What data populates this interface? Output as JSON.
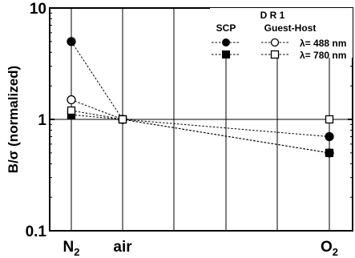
{
  "chart_data": {
    "type": "line",
    "ylabel": "B/σ (normalized)",
    "yscale": "log",
    "ylim": [
      0.1,
      10
    ],
    "y_ticks": [
      {
        "value": 0.1,
        "label": "0.1"
      },
      {
        "value": 1,
        "label": "1"
      },
      {
        "value": 10,
        "label": "10"
      }
    ],
    "categories": [
      "N2",
      "air",
      "O2"
    ],
    "category_labels": [
      {
        "base": "N",
        "sub": "2"
      },
      {
        "base": "air",
        "sub": ""
      },
      {
        "base": "O",
        "sub": "2"
      }
    ],
    "reference_line": 1,
    "legend": {
      "title": "D R 1",
      "columns": [
        "SCP",
        "Guest-Host"
      ],
      "rows": [
        "λ= 488 nm",
        "λ= 780 nm"
      ],
      "placement": "top-right"
    },
    "series": [
      {
        "method": "SCP",
        "wavelength": "λ= 488 nm",
        "marker": "filled-circle",
        "values": [
          5.0,
          1.0,
          0.7
        ]
      },
      {
        "method": "Guest-Host",
        "wavelength": "λ= 488 nm",
        "marker": "open-circle",
        "values": [
          1.5,
          1.0,
          0.5
        ]
      },
      {
        "method": "SCP",
        "wavelength": "λ= 780 nm",
        "marker": "filled-square",
        "values": [
          1.1,
          1.0,
          0.5
        ]
      },
      {
        "method": "Guest-Host",
        "wavelength": "λ= 780 nm",
        "marker": "open-square",
        "values": [
          1.2,
          1.0,
          1.0
        ]
      }
    ]
  }
}
